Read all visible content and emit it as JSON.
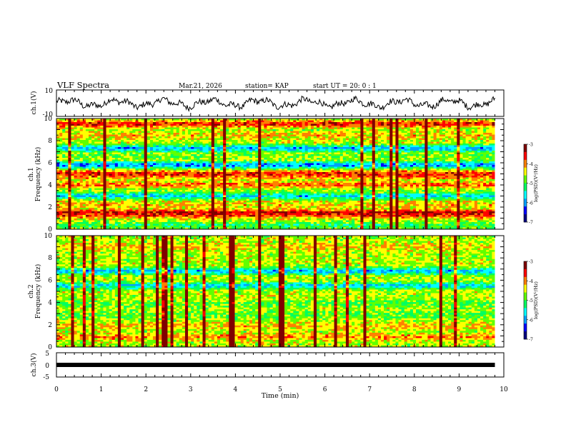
{
  "header": {
    "title": "VLF Spectra",
    "date": "Mar.21, 2026",
    "station": "station= KAP",
    "start": "start  UT =   20: 0  : 1"
  },
  "chart_data": [
    {
      "type": "line",
      "name": "ch1-waveform",
      "ylabel": "ch.1(V)",
      "ylim": [
        -10,
        10
      ],
      "yticks": [
        "10",
        "-10"
      ],
      "xlim": [
        0,
        10
      ],
      "data_extent_min": 9.8,
      "description_values": {
        "mean": 0,
        "amplitude_approx": 4
      }
    },
    {
      "type": "heatmap",
      "name": "ch1-spectrogram",
      "ylabel_line1": "ch.1",
      "ylabel_line2": "Frequency (kHz)",
      "ylim": [
        0,
        10
      ],
      "yticks": [
        "0",
        "2",
        "4",
        "6",
        "8",
        "10"
      ],
      "xlim": [
        0,
        9.8
      ],
      "colorbar": {
        "label": "log(PSD)(V²/Hz)",
        "range": [
          -7,
          -3
        ],
        "ticks": [
          "-3",
          "-4",
          "-5",
          "-6",
          "-7"
        ]
      },
      "bands_khz": [
        {
          "f": 0.35,
          "level": -5.2
        },
        {
          "f": 1.2,
          "level": -4.0
        },
        {
          "f": 1.5,
          "level": -3.3
        },
        {
          "f": 2.2,
          "level": -4.2
        },
        {
          "f": 3.0,
          "level": -5.8
        },
        {
          "f": 3.7,
          "level": -4.8
        },
        {
          "f": 4.0,
          "level": -3.8
        },
        {
          "f": 4.8,
          "level": -4.0
        },
        {
          "f": 5.0,
          "level": -3.6
        },
        {
          "f": 5.8,
          "level": -6.2
        },
        {
          "f": 6.6,
          "level": -4.8
        },
        {
          "f": 7.3,
          "level": -6.0
        },
        {
          "f": 8.5,
          "level": -4.2
        },
        {
          "f": 9.5,
          "level": -3.5
        }
      ]
    },
    {
      "type": "heatmap",
      "name": "ch2-spectrogram",
      "ylabel_line1": "ch.2",
      "ylabel_line2": "Frequency (kHz)",
      "ylim": [
        0,
        10
      ],
      "yticks": [
        "0",
        "2",
        "4",
        "6",
        "8",
        "10"
      ],
      "xlim": [
        0,
        9.8
      ],
      "colorbar": {
        "label": "log(PSD)(V²/Hz)",
        "range": [
          -7,
          -3
        ],
        "ticks": [
          "-3",
          "-4",
          "-5",
          "-6",
          "-7"
        ]
      },
      "bands_khz": [
        {
          "f": 0.9,
          "level": -4.0
        },
        {
          "f": 1.9,
          "level": -4.2
        },
        {
          "f": 2.9,
          "level": -5.0
        },
        {
          "f": 3.9,
          "level": -5.0
        },
        {
          "f": 4.5,
          "level": -4.6
        },
        {
          "f": 5.5,
          "level": -5.8
        },
        {
          "f": 6.8,
          "level": -6.0
        },
        {
          "f": 7.7,
          "level": -4.6
        },
        {
          "f": 9.0,
          "level": -4.2
        }
      ]
    },
    {
      "type": "line",
      "name": "ch3-level",
      "ylabel": "ch.3(V)",
      "ylim": [
        -5,
        5
      ],
      "yticks": [
        "5",
        "0",
        "-5"
      ],
      "xlim": [
        0,
        10
      ],
      "xticks": [
        "0",
        "1",
        "2",
        "3",
        "4",
        "5",
        "6",
        "7",
        "8",
        "9",
        "10"
      ],
      "xlabel": "Time  (min)",
      "value": 0,
      "data_extent_min": 9.8
    }
  ],
  "colors": {
    "scale": [
      "#000080",
      "#0000ff",
      "#00a0ff",
      "#00ffff",
      "#00ff60",
      "#60ff00",
      "#ffff00",
      "#ff8000",
      "#ff0000",
      "#800000"
    ]
  }
}
